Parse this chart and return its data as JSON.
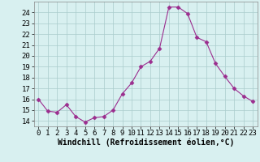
{
  "x": [
    0,
    1,
    2,
    3,
    4,
    5,
    6,
    7,
    8,
    9,
    10,
    11,
    12,
    13,
    14,
    15,
    16,
    17,
    18,
    19,
    20,
    21,
    22,
    23
  ],
  "y": [
    16.0,
    14.9,
    14.8,
    15.5,
    14.4,
    13.9,
    14.3,
    14.4,
    15.0,
    16.5,
    17.5,
    19.0,
    19.5,
    20.7,
    24.5,
    24.5,
    23.9,
    21.7,
    21.3,
    19.3,
    18.1,
    17.0,
    16.3,
    15.8
  ],
  "line_color": "#9B2D8E",
  "marker": "D",
  "marker_size": 2.5,
  "bg_color": "#D8F0F0",
  "grid_color": "#AACCCC",
  "xlabel": "Windchill (Refroidissement éolien,°C)",
  "xlabel_fontsize": 7,
  "tick_fontsize": 6.5,
  "ylim": [
    13.5,
    25.0
  ],
  "xlim": [
    -0.5,
    23.5
  ],
  "yticks": [
    14,
    15,
    16,
    17,
    18,
    19,
    20,
    21,
    22,
    23,
    24
  ],
  "xticks": [
    0,
    1,
    2,
    3,
    4,
    5,
    6,
    7,
    8,
    9,
    10,
    11,
    12,
    13,
    14,
    15,
    16,
    17,
    18,
    19,
    20,
    21,
    22,
    23
  ]
}
